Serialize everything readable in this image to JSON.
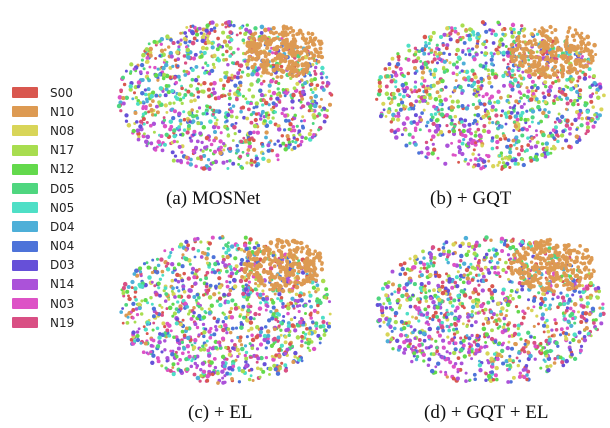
{
  "chart_data": {
    "type": "scatter",
    "description_free": true,
    "legend": {
      "placement": "left",
      "entries": [
        {
          "label": "S00",
          "color": "#d9574f"
        },
        {
          "label": "N10",
          "color": "#dd9a52"
        },
        {
          "label": "N08",
          "color": "#d8d558"
        },
        {
          "label": "N17",
          "color": "#a8dd4f"
        },
        {
          "label": "N12",
          "color": "#63d94c"
        },
        {
          "label": "D05",
          "color": "#4fd67f"
        },
        {
          "label": "N05",
          "color": "#4edfc6"
        },
        {
          "label": "D04",
          "color": "#4eafd8"
        },
        {
          "label": "N04",
          "color": "#4d73d9"
        },
        {
          "label": "D03",
          "color": "#6650d8"
        },
        {
          "label": "N14",
          "color": "#ab52d9"
        },
        {
          "label": "N03",
          "color": "#dd52c6"
        },
        {
          "label": "N19",
          "color": "#d94f84"
        }
      ]
    },
    "panels": [
      {
        "caption": "(a)  MOSNet",
        "cluster_label": "N10",
        "cluster_position": "top-right"
      },
      {
        "caption": "(b) + GQT",
        "cluster_label": "N10",
        "cluster_position": "top-right"
      },
      {
        "caption": "(c) + EL",
        "cluster_label": "N10",
        "cluster_position": "top-right"
      },
      {
        "caption": "(d) + GQT + EL",
        "cluster_label": "N10",
        "cluster_position": "top-right"
      }
    ],
    "axes": "none",
    "grid": false
  }
}
